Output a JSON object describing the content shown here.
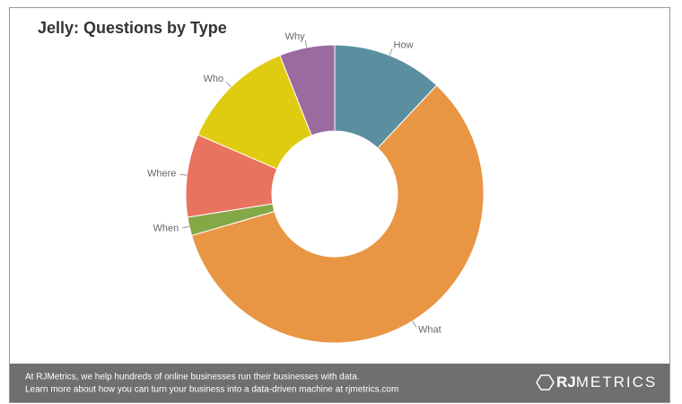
{
  "chart_data": {
    "type": "donut",
    "title": "Jelly: Questions by Type",
    "categories": [
      "How",
      "What",
      "When",
      "Where",
      "Who",
      "Why"
    ],
    "values": [
      12,
      58.5,
      2,
      9,
      12.5,
      6
    ],
    "colors": [
      "#5b8fa0",
      "#e99644",
      "#83a846",
      "#e8735e",
      "#dfcc10",
      "#9b6a9e"
    ]
  },
  "footer": {
    "lines": [
      "At RJMetrics, we help hundreds of online businesses run their businesses with data.",
      "Learn more about how you can turn your business into a data-driven machine at rjmetrics.com"
    ],
    "logo": [
      "RJ",
      "METRICS"
    ]
  }
}
